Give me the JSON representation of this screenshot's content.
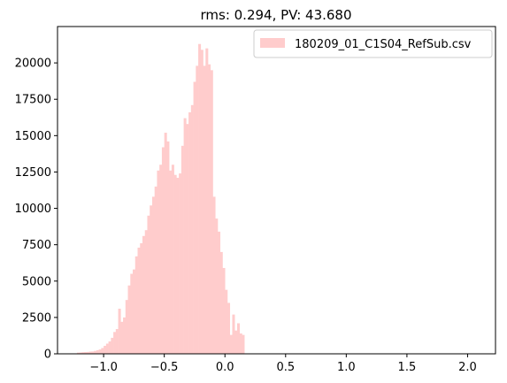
{
  "chart_data": {
    "type": "bar",
    "title": "rms: 0.294, PV: 43.680",
    "xlabel": "",
    "ylabel": "",
    "xlim": [
      -1.38,
      2.23
    ],
    "ylim": [
      0,
      22500
    ],
    "xticks": [
      -1.0,
      -0.5,
      0.0,
      0.5,
      1.0,
      1.5,
      2.0
    ],
    "xtick_labels": [
      "−1.0",
      "−0.5",
      "0.0",
      "0.5",
      "1.0",
      "1.5",
      "2.0"
    ],
    "yticks": [
      0,
      2500,
      5000,
      7500,
      10000,
      12500,
      15000,
      17500,
      20000
    ],
    "ytick_labels": [
      "0",
      "2500",
      "5000",
      "7500",
      "10000",
      "12500",
      "15000",
      "17500",
      "20000"
    ],
    "grid": false,
    "legend_position": "top-right",
    "bar_color": "#ffcccc",
    "series": [
      {
        "name": "180209_01_C1S04_RefSub.csv",
        "bin_start": -1.22,
        "bin_width": 0.02,
        "counts": [
          80,
          90,
          110,
          120,
          130,
          150,
          160,
          200,
          250,
          300,
          400,
          550,
          700,
          850,
          1100,
          1500,
          1700,
          3100,
          2200,
          2500,
          3700,
          4700,
          5500,
          5800,
          6700,
          7300,
          7600,
          8100,
          8500,
          9500,
          10200,
          10800,
          11500,
          12600,
          13000,
          14200,
          15200,
          14600,
          12600,
          13000,
          12300,
          12100,
          12400,
          14300,
          16200,
          15800,
          16600,
          17100,
          18700,
          19800,
          21300,
          20900,
          19800,
          21000,
          19900,
          19500,
          10800,
          9300,
          8400,
          7000,
          5900,
          4400,
          3500,
          1300,
          2700,
          1600,
          2100,
          1400,
          1300
        ]
      }
    ]
  }
}
